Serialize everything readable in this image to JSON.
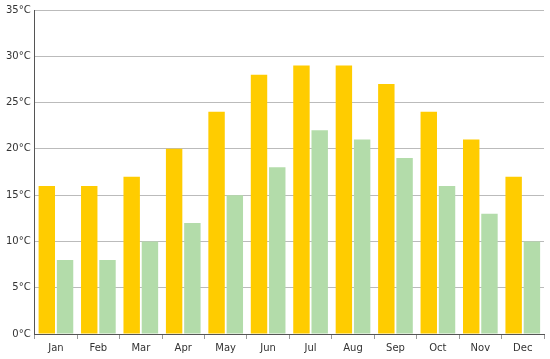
{
  "chart_data": {
    "type": "bar",
    "categories": [
      "Jan",
      "Feb",
      "Mar",
      "Apr",
      "May",
      "Jun",
      "Jul",
      "Aug",
      "Sep",
      "Oct",
      "Nov",
      "Dec"
    ],
    "series": [
      {
        "color": "#ffcc00",
        "values": [
          16,
          16,
          17,
          20,
          24,
          28,
          29,
          29,
          27,
          24,
          21,
          17
        ]
      },
      {
        "color": "#b3dcaa",
        "values": [
          8,
          8,
          10,
          12,
          15,
          18,
          22,
          21,
          19,
          16,
          13,
          10
        ]
      }
    ],
    "ylim": [
      0,
      35
    ],
    "yticks": [
      {
        "value": 0,
        "label": "0°C"
      },
      {
        "value": 5,
        "label": "5°C"
      },
      {
        "value": 10,
        "label": "10°C"
      },
      {
        "value": 15,
        "label": "15°C"
      },
      {
        "value": 20,
        "label": "20°C"
      },
      {
        "value": 25,
        "label": "25°C"
      },
      {
        "value": 30,
        "label": "30°C"
      },
      {
        "value": 35,
        "label": "35°C"
      }
    ],
    "grid": true
  }
}
